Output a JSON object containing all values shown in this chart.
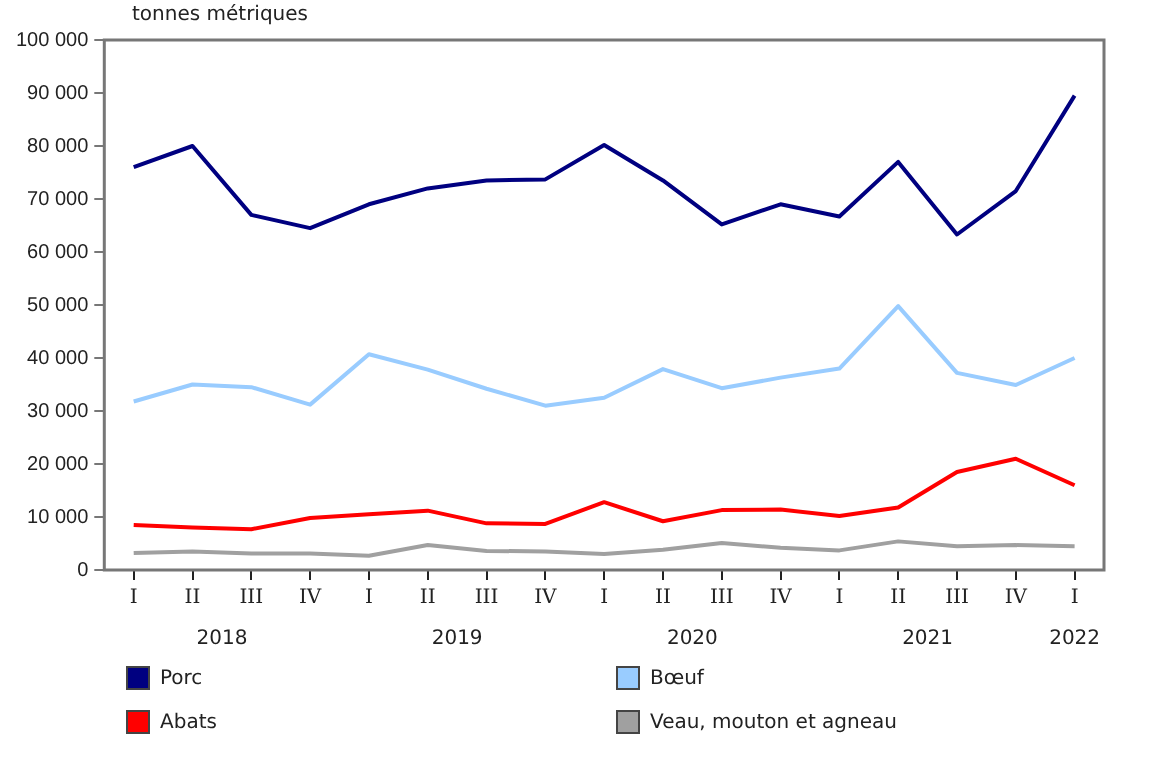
{
  "chart_data": {
    "type": "line",
    "ylabel": "tonnes métriques",
    "categories": [
      "I",
      "II",
      "III",
      "IV",
      "I",
      "II",
      "III",
      "IV",
      "I",
      "II",
      "III",
      "IV",
      "I",
      "II",
      "III",
      "IV",
      "I"
    ],
    "annotations": [
      "2018",
      "2019",
      "2020",
      "2021",
      "2022"
    ],
    "ylim": [
      0,
      100000
    ],
    "yticks": [
      {
        "value": 0,
        "label": "0"
      },
      {
        "value": 10000,
        "label": "10 000"
      },
      {
        "value": 20000,
        "label": "20 000"
      },
      {
        "value": 30000,
        "label": "30 000"
      },
      {
        "value": 40000,
        "label": "40 000"
      },
      {
        "value": 50000,
        "label": "50 000"
      },
      {
        "value": 60000,
        "label": "60 000"
      },
      {
        "value": 70000,
        "label": "70 000"
      },
      {
        "value": 80000,
        "label": "80 000"
      },
      {
        "value": 90000,
        "label": "90 000"
      },
      {
        "value": 100000,
        "label": "100 000"
      }
    ],
    "grid": false,
    "legend": "bottom",
    "marker": "none",
    "line_style": "solid",
    "series": [
      {
        "name": "Porc",
        "color": "#000080",
        "values": [
          76000,
          80000,
          67000,
          64500,
          69000,
          72000,
          73500,
          73700,
          80200,
          73500,
          65200,
          69000,
          66700,
          77000,
          63300,
          71500,
          89500
        ]
      },
      {
        "name": "Bœuf",
        "color": "#99ccff",
        "values": [
          31800,
          35000,
          34500,
          31200,
          40700,
          37800,
          34200,
          31000,
          32500,
          37900,
          34300,
          36300,
          38000,
          49800,
          37200,
          34900,
          40000
        ]
      },
      {
        "name": "Abats",
        "color": "#ff0000",
        "values": [
          8500,
          8000,
          7700,
          9800,
          10500,
          11200,
          8800,
          8700,
          12800,
          9200,
          11300,
          11400,
          10200,
          11800,
          18500,
          21000,
          16000
        ]
      },
      {
        "name": "Veau, mouton et agneau",
        "color": "#a0a0a0",
        "values": [
          3200,
          3500,
          3100,
          3100,
          2700,
          4700,
          3600,
          3500,
          3000,
          3800,
          5100,
          4200,
          3700,
          5400,
          4500,
          4700,
          4500
        ]
      }
    ]
  }
}
